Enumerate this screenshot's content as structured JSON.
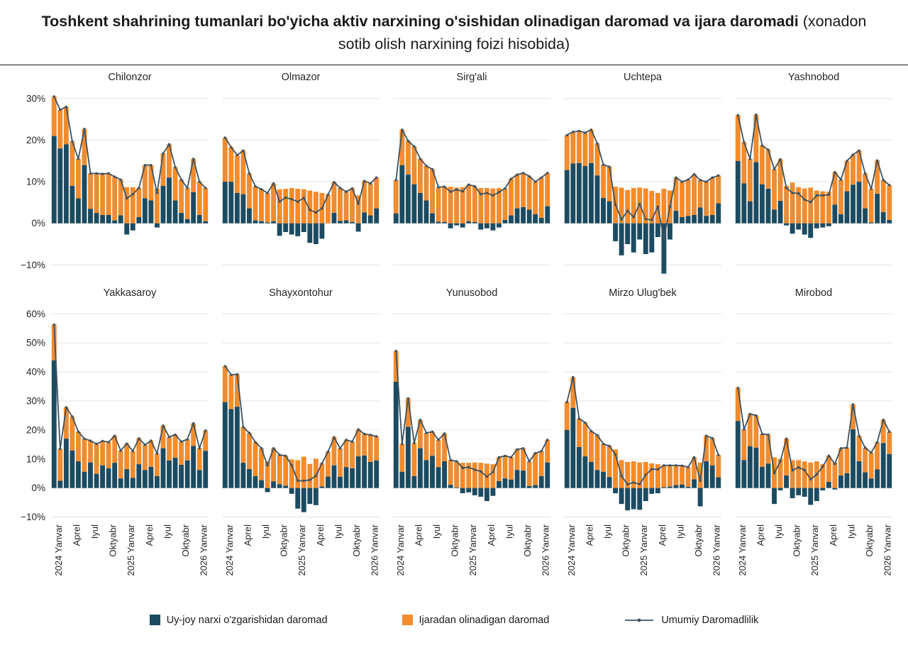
{
  "title": {
    "bold": "Toshkent shahrining tumanlari bo'yicha aktiv narxining o'sishidan olinadigan daromad va ijara daromadi",
    "normal": "(xonadon sotib olish narxining foizi hisobida)"
  },
  "legend": {
    "price_label": "Uy-joy narxi o'zgarishidan daromad",
    "rent_label": "Ijaradan olinadigan daromad",
    "line_label": "Umumiy Daromadlilik"
  },
  "colors": {
    "price": "#1c4b61",
    "rent": "#f28c2e",
    "line": "#3e5260",
    "grid": "#e6e6e6",
    "text": "#262626"
  },
  "chart_data": {
    "type": "bar",
    "stacked": true,
    "line_overlay": "sum of stacked series (Umumiy Daromadlilik)",
    "x_months": "2024-01 .. 2026-02 (26 oy)",
    "x_tick_labels": [
      "2024 Yanvar",
      "Aprel",
      "Iyul",
      "Oktyabr",
      "2025 Yanvar",
      "Aprel",
      "Iyul",
      "Oktyabr",
      "2026 Yanvar"
    ],
    "x_tick_positions": [
      0,
      3,
      6,
      9,
      12,
      15,
      18,
      21,
      24
    ],
    "rows": [
      {
        "yticks": [
          30,
          20,
          10,
          0,
          -10
        ],
        "ylim": [
          -13.5,
          32.2
        ],
        "districts": [
          {
            "name": "Chilonzor",
            "price": [
              21,
              18,
              19,
              9,
              6,
              14,
              3.5,
              2.5,
              2,
              2,
              0.7,
              1.9,
              -2.7,
              -1.7,
              1.5,
              6,
              5.5,
              -1,
              9,
              11,
              5.5,
              2.5,
              1,
              7.5,
              2,
              0.5
            ],
            "rent": [
              9.5,
              9.3,
              9,
              10.7,
              9.5,
              8.7,
              8.5,
              9.5,
              9.9,
              10,
              10.5,
              8.6,
              8.7,
              8.7,
              7,
              8,
              8.5,
              8.3,
              7.8,
              8,
              8,
              8,
              7.5,
              8,
              8,
              8
            ]
          },
          {
            "name": "Olmazor",
            "price": [
              10,
              10,
              7.3,
              7,
              3.6,
              0.7,
              0.5,
              0.2,
              0.5,
              -3,
              -2.1,
              -2.7,
              -3.1,
              -2.1,
              -4.7,
              -5,
              -3.7,
              0,
              2.5,
              0.6,
              0.7,
              0.3,
              -2,
              2.6,
              1.9,
              3.6
            ],
            "rent": [
              10.6,
              8.3,
              9.1,
              10.5,
              8.4,
              8.2,
              7.7,
              7.1,
              9.1,
              8.2,
              8.3,
              8.5,
              8.3,
              8.2,
              7.9,
              7.6,
              7.3,
              6.9,
              7.4,
              7.9,
              6.9,
              8.1,
              6.7,
              7.6,
              7.7,
              7.4
            ]
          },
          {
            "name": "Sirg'ali",
            "price": [
              2.4,
              14,
              11.7,
              9.4,
              7.3,
              5.5,
              2.4,
              0.4,
              0.3,
              -1.2,
              -0.5,
              -1,
              0.5,
              0.3,
              -1.5,
              -1.2,
              -1.7,
              -1,
              0.8,
              1.9,
              3.6,
              3.9,
              3.3,
              2.2,
              1.3,
              4.1
            ],
            "rent": [
              8,
              8.5,
              8.1,
              9.1,
              8.2,
              8.3,
              10.6,
              8.3,
              8.5,
              8.8,
              8.6,
              8.7,
              8.8,
              8.6,
              8.5,
              8.5,
              8.4,
              8.5,
              7.6,
              8.8,
              8.1,
              8.2,
              8,
              7.8,
              9.7,
              8
            ]
          },
          {
            "name": "Uchtepa",
            "price": [
              12.8,
              14.4,
              14.5,
              13.8,
              14.5,
              11.5,
              6.1,
              5.3,
              -4.3,
              -7.7,
              -5,
              -7,
              -3.9,
              -7.4,
              -7,
              -3.3,
              -12.1,
              -3.9,
              3,
              1.5,
              1.8,
              2,
              3.8,
              1.8,
              2,
              4.8
            ],
            "rent": [
              8.4,
              7.6,
              7.7,
              8,
              8,
              7.7,
              8,
              8.3,
              8.8,
              8.6,
              8,
              8.5,
              8.6,
              8.4,
              7.8,
              7.3,
              8.3,
              7.9,
              8,
              8.5,
              8.7,
              9.8,
              6.6,
              8.2,
              9,
              6.7
            ]
          },
          {
            "name": "Yashnobod",
            "price": [
              15,
              9.6,
              5.3,
              14.7,
              9.4,
              8.3,
              3.3,
              5.4,
              -0.5,
              -2.5,
              -1.5,
              -2.7,
              -3.5,
              -1.2,
              -1,
              -0.7,
              4.5,
              2.2,
              7.7,
              9.3,
              10,
              3.6,
              0.2,
              7.1,
              2.7,
              0.8
            ],
            "rent": [
              11,
              9.9,
              10.2,
              11.4,
              9.3,
              9.4,
              9.7,
              10,
              9,
              9.8,
              8.7,
              8.4,
              8.6,
              7.9,
              7.7,
              7.6,
              7.8,
              8.3,
              7.3,
              7.2,
              7.5,
              8.4,
              8.1,
              8,
              7.7,
              8.4
            ]
          }
        ]
      },
      {
        "yticks": [
          60,
          50,
          40,
          30,
          20,
          10,
          0,
          -10
        ],
        "ylim": [
          -11,
          63
        ],
        "districts": [
          {
            "name": "Yakkasaroy",
            "price": [
              44,
              2.5,
              17,
              12.9,
              9.2,
              5.6,
              8.8,
              4.9,
              7.8,
              6.8,
              8.7,
              3.3,
              6.5,
              3.5,
              8.2,
              6.2,
              7.3,
              4.1,
              13.7,
              9.5,
              10.4,
              8,
              9.5,
              14.5,
              6.2,
              12.8
            ],
            "rent": [
              12.3,
              11,
              10.8,
              11.7,
              10.2,
              11.4,
              7.5,
              10.3,
              8.4,
              9,
              9.3,
              9.6,
              8.8,
              9.2,
              8.9,
              8.7,
              9,
              7.8,
              7.8,
              8.1,
              8,
              8,
              7.3,
              7.8,
              7.5,
              7
            ]
          },
          {
            "name": "Shayxontohur",
            "price": [
              29.6,
              27.2,
              28,
              8.7,
              6.5,
              4.1,
              2.7,
              -1.4,
              2.3,
              1.3,
              0.8,
              -2,
              -7.1,
              -8.3,
              -5.5,
              -5.9,
              0.5,
              3.9,
              7.8,
              3.9,
              7.2,
              6.8,
              10.9,
              11.2,
              9,
              9.5
            ],
            "rent": [
              12.4,
              11.8,
              11.2,
              12.3,
              12.5,
              11.7,
              11,
              9.2,
              11.4,
              10.1,
              10.3,
              9.8,
              9.6,
              10.8,
              8.3,
              10.1,
              8,
              8.6,
              9.7,
              9.8,
              9.4,
              9.2,
              9.3,
              7.4,
              9.3,
              8.3
            ]
          },
          {
            "name": "Yunusobod",
            "price": [
              36.6,
              5.6,
              21.1,
              4.1,
              13.7,
              9.6,
              11.1,
              7.2,
              9.2,
              1.1,
              0.2,
              -1.8,
              -1.5,
              -2.5,
              -3,
              -4.5,
              -2.7,
              2.4,
              3.3,
              2.9,
              6.2,
              6,
              0.7,
              1,
              4.1,
              8.8
            ],
            "rent": [
              10.6,
              9.6,
              9.8,
              11.4,
              9.8,
              9.4,
              8.3,
              9.4,
              9.6,
              8.5,
              9,
              8.7,
              8.7,
              8.8,
              8.7,
              8.4,
              8.2,
              8.2,
              7.8,
              7.7,
              7.1,
              7.7,
              8.5,
              11,
              8.6,
              7.8
            ]
          },
          {
            "name": "Mirzo Ulug'bek",
            "price": [
              20,
              27.6,
              14.1,
              10.9,
              9,
              6.2,
              5.6,
              3.8,
              -1.8,
              -5.5,
              -7.7,
              -7.3,
              -7.5,
              -4.5,
              -2,
              -1.8,
              0.3,
              0.5,
              1,
              1.2,
              0.4,
              3,
              -6.3,
              9.2,
              7.8,
              3.7
            ],
            "rent": [
              9.6,
              10.6,
              9.8,
              11.6,
              10.6,
              12,
              9.6,
              10.7,
              13.3,
              9.6,
              9,
              9.2,
              8.8,
              9,
              8.5,
              8.2,
              7.5,
              7.3,
              6.8,
              6.5,
              6.8,
              7.6,
              8.8,
              8.8,
              9.4,
              7.7
            ]
          },
          {
            "name": "Mirobod",
            "price": [
              23.1,
              9.6,
              14.4,
              13.9,
              7.3,
              8.4,
              -5.5,
              -0.8,
              4.3,
              -3.5,
              -2.5,
              -3,
              -5.8,
              -4.5,
              -0.8,
              2.1,
              -0.5,
              4.3,
              5.1,
              20.2,
              9.2,
              5.4,
              3.3,
              6.4,
              15.5,
              11.7
            ],
            "rent": [
              11.4,
              10.6,
              11.1,
              11.1,
              11.3,
              10,
              10.6,
              10,
              12.7,
              9.6,
              9.6,
              9.2,
              8.8,
              9.2,
              8.2,
              9,
              8.8,
              9.4,
              8.8,
              8.6,
              8.8,
              8.5,
              8.9,
              9.4,
              8,
              7.7
            ]
          }
        ]
      }
    ]
  }
}
